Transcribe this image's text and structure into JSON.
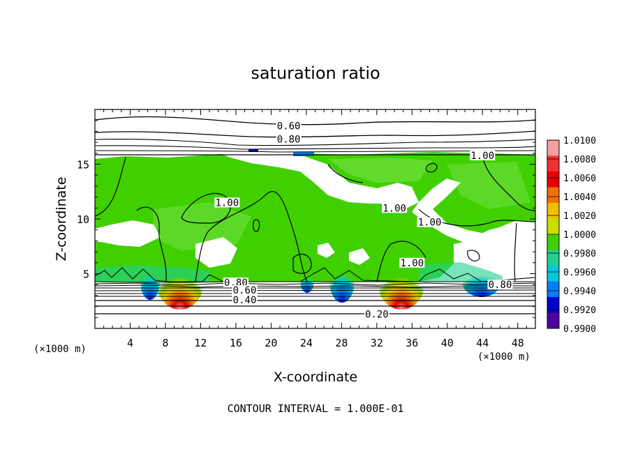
{
  "chart_data": {
    "type": "heatmap",
    "title": "saturation ratio",
    "xlabel": "X-coordinate",
    "ylabel": "Z-coordinate",
    "x_unit": "(×1000 m)",
    "z_unit": "(×1000 m)",
    "xlim": [
      0,
      50
    ],
    "ylim": [
      0,
      20
    ],
    "x_ticks": [
      "4",
      "8",
      "12",
      "16",
      "20",
      "24",
      "28",
      "32",
      "36",
      "40",
      "44",
      "48"
    ],
    "y_ticks": [
      "5",
      "10",
      "15"
    ],
    "colorbar": {
      "range": [
        0.99,
        1.01
      ],
      "labels": [
        "1.0100",
        "1.0080",
        "1.0060",
        "1.0040",
        "1.0020",
        "1.0000",
        "0.9980",
        "0.9960",
        "0.9940",
        "0.9920",
        "0.9900"
      ],
      "colors": [
        "#f4a0a0",
        "#f03030",
        "#e60000",
        "#f07000",
        "#f0c000",
        "#c8e000",
        "#40d000",
        "#20d090",
        "#00c8d8",
        "#0080f0",
        "#0000d0",
        "#5000a0"
      ]
    },
    "contour_labels": [
      {
        "text": "0.60",
        "x": 22,
        "z": 18.5
      },
      {
        "text": "0.80",
        "x": 22,
        "z": 17.3
      },
      {
        "text": "1.00",
        "x": 44,
        "z": 15.8
      },
      {
        "text": "1.00",
        "x": 15,
        "z": 11.5
      },
      {
        "text": "1.00",
        "x": 34,
        "z": 11.0
      },
      {
        "text": "1.00",
        "x": 38,
        "z": 9.7
      },
      {
        "text": "1.00",
        "x": 36,
        "z": 6.0
      },
      {
        "text": "0.80",
        "x": 16,
        "z": 4.2
      },
      {
        "text": "0.60",
        "x": 17,
        "z": 3.5
      },
      {
        "text": "0.40",
        "x": 17,
        "z": 2.6
      },
      {
        "text": "0.80",
        "x": 46,
        "z": 4.0
      },
      {
        "text": "0.20",
        "x": 32,
        "z": 1.3
      }
    ],
    "contour_interval_text": "CONTOUR INTERVAL = 1.000E-01"
  }
}
